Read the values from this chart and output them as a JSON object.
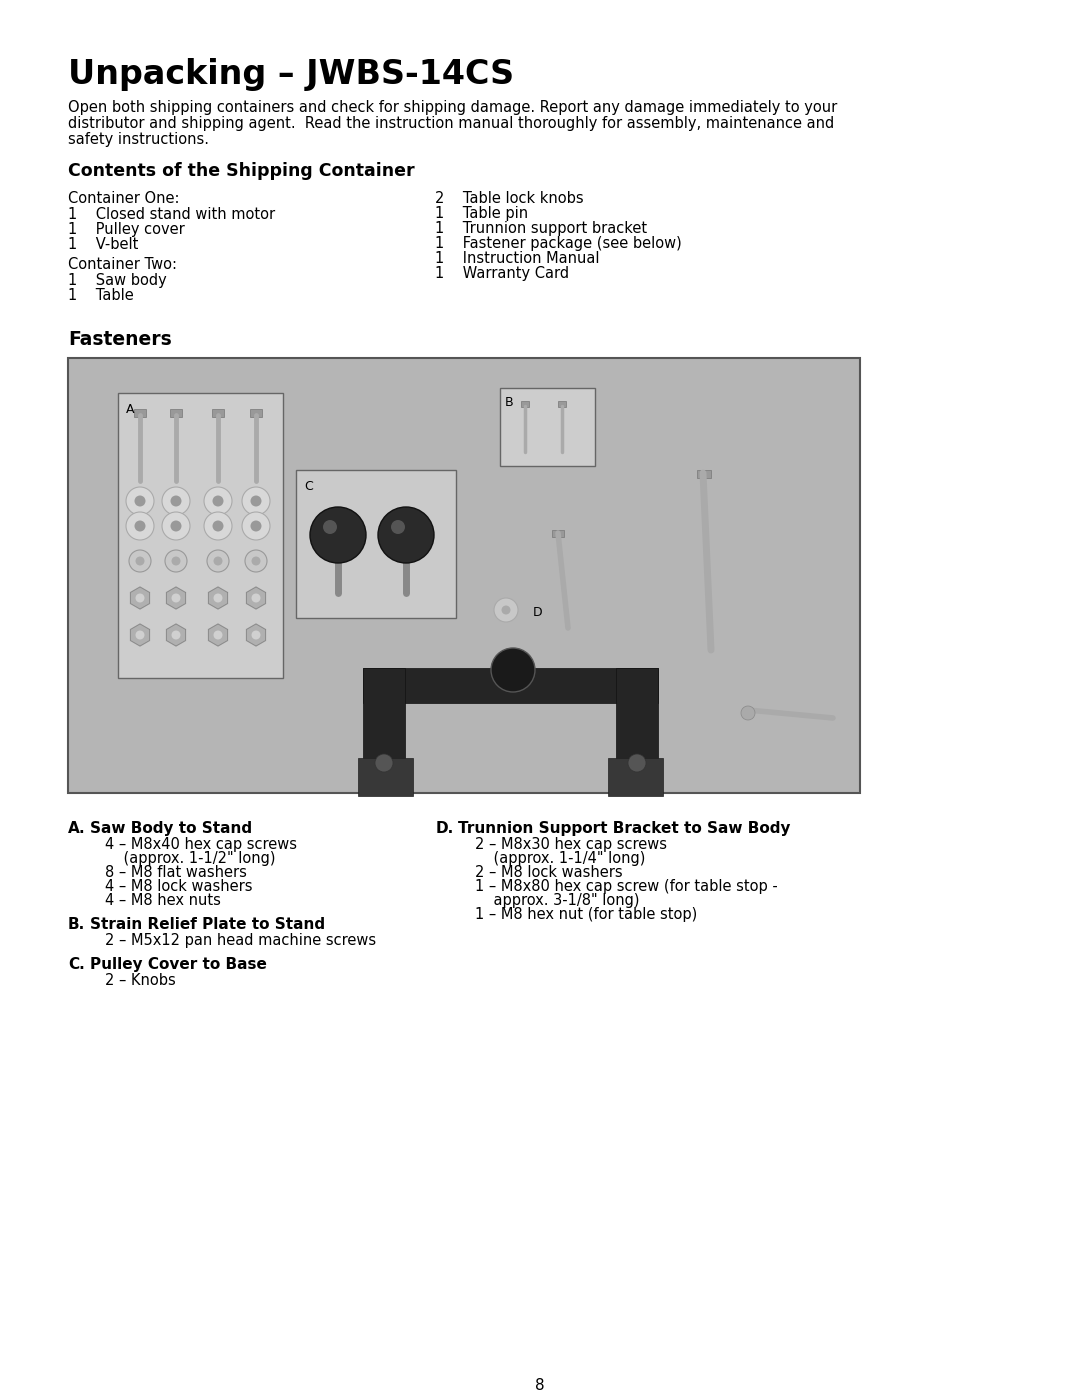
{
  "title": "Unpacking – JWBS-14CS",
  "intro_line1": "Open both shipping containers and check for shipping damage. Report any damage immediately to your",
  "intro_line2": "distributor and shipping agent.  Read the instruction manual thoroughly for assembly, maintenance and",
  "intro_line3": "safety instructions.",
  "section1_title": "Contents of the Shipping Container",
  "container_one_label": "Container One:",
  "container_one_items": [
    "1    Closed stand with motor",
    "1    Pulley cover",
    "1    V-belt"
  ],
  "container_two_label": "Container Two:",
  "container_two_items": [
    "1    Saw body",
    "1    Table"
  ],
  "right_col_items": [
    "2    Table lock knobs",
    "1    Table pin",
    "1    Trunnion support bracket",
    "1    Fastener package (see below)",
    "1    Instruction Manual",
    "1    Warranty Card"
  ],
  "section2_title": "Fasteners",
  "group_a_label": "A.",
  "group_a_title": "Saw Body to Stand",
  "group_a_items": [
    "4 – M8x40 hex cap screws",
    "    (approx. 1-1/2\" long)",
    "8 – M8 flat washers",
    "4 – M8 lock washers",
    "4 – M8 hex nuts"
  ],
  "group_b_label": "B.",
  "group_b_title": "Strain Relief Plate to Stand",
  "group_b_items": [
    "2 – M5x12 pan head machine screws"
  ],
  "group_c_label": "C.",
  "group_c_title": "Pulley Cover to Base",
  "group_c_items": [
    "2 – Knobs"
  ],
  "group_d_label": "D.",
  "group_d_title": "Trunnion Support Bracket to Saw Body",
  "group_d_items": [
    "2 – M8x30 hex cap screws",
    "    (approx. 1-1/4\" long)",
    "2 – M8 lock washers",
    "1 – M8x80 hex cap screw (for table stop -",
    "    approx. 3-1/8\" long)",
    "1 – M8 hex nut (for table stop)"
  ],
  "page_number": "8",
  "bg_color": "#ffffff",
  "img_bg": "#b5b5b5",
  "box_fill": "#c5c5c5",
  "dark": "#1e1e1e"
}
